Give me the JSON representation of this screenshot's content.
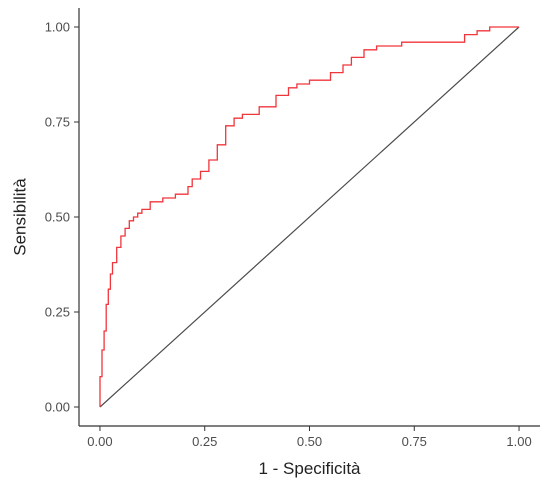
{
  "chart_data": {
    "type": "line",
    "title": "",
    "xlabel": "1 - Specificità",
    "ylabel": "Sensibilità",
    "xlim": [
      -0.05,
      1.05
    ],
    "ylim": [
      -0.05,
      1.05
    ],
    "x_ticks": [
      0,
      0.25,
      0.5,
      0.75,
      1
    ],
    "x_tick_labels": [
      "0.00",
      "0.25",
      "0.50",
      "0.75",
      "1.00"
    ],
    "y_ticks": [
      0,
      0.25,
      0.5,
      0.75,
      1
    ],
    "y_tick_labels": [
      "0.00",
      "0.25",
      "0.50",
      "0.75",
      "1.00"
    ],
    "grid": false,
    "colors": {
      "roc": "#f0353b",
      "reference": "#4a4a4a",
      "axis": "#333333"
    },
    "series": [
      {
        "x": [
          0.0,
          0.0,
          0.005,
          0.005,
          0.01,
          0.01,
          0.015,
          0.015,
          0.02,
          0.02,
          0.025,
          0.025,
          0.03,
          0.03,
          0.04,
          0.04,
          0.05,
          0.05,
          0.06,
          0.06,
          0.07,
          0.07,
          0.08,
          0.08,
          0.09,
          0.09,
          0.1,
          0.1,
          0.12,
          0.12,
          0.15,
          0.15,
          0.18,
          0.18,
          0.21,
          0.21,
          0.22,
          0.22,
          0.24,
          0.24,
          0.26,
          0.26,
          0.28,
          0.28,
          0.3,
          0.3,
          0.32,
          0.32,
          0.34,
          0.34,
          0.38,
          0.38,
          0.42,
          0.42,
          0.45,
          0.45,
          0.47,
          0.47,
          0.5,
          0.5,
          0.55,
          0.55,
          0.58,
          0.58,
          0.6,
          0.6,
          0.63,
          0.63,
          0.66,
          0.66,
          0.72,
          0.72,
          0.87,
          0.87,
          0.9,
          0.9,
          0.93,
          0.93,
          0.97,
          0.97,
          1.0
        ],
        "y": [
          0.0,
          0.08,
          0.08,
          0.15,
          0.15,
          0.2,
          0.2,
          0.27,
          0.27,
          0.31,
          0.31,
          0.35,
          0.35,
          0.38,
          0.38,
          0.42,
          0.42,
          0.45,
          0.45,
          0.47,
          0.47,
          0.49,
          0.49,
          0.5,
          0.5,
          0.51,
          0.51,
          0.52,
          0.52,
          0.54,
          0.54,
          0.55,
          0.55,
          0.56,
          0.56,
          0.58,
          0.58,
          0.6,
          0.6,
          0.62,
          0.62,
          0.65,
          0.65,
          0.69,
          0.69,
          0.74,
          0.74,
          0.76,
          0.76,
          0.77,
          0.77,
          0.79,
          0.79,
          0.82,
          0.82,
          0.84,
          0.84,
          0.85,
          0.85,
          0.86,
          0.86,
          0.88,
          0.88,
          0.9,
          0.9,
          0.92,
          0.92,
          0.94,
          0.94,
          0.95,
          0.95,
          0.96,
          0.96,
          0.98,
          0.98,
          0.99,
          0.99,
          1.0,
          1.0,
          1.0,
          1.0
        ]
      },
      {
        "x": [
          0,
          1
        ],
        "y": [
          0,
          1
        ]
      }
    ]
  }
}
